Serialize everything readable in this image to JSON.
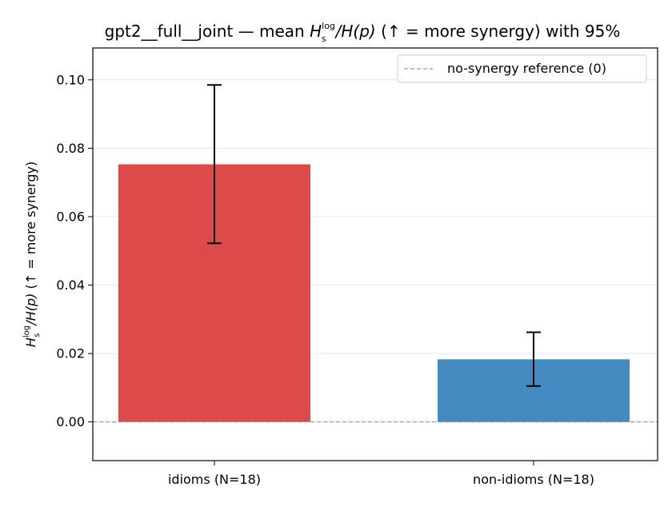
{
  "chart_data": {
    "type": "bar",
    "title": {
      "prefix": "gpt2__full__joint — mean ",
      "sym_main": "H",
      "sym_sup": "log",
      "sym_sub": "s",
      "sym_rest": "/H(p)",
      "suffix": "  (↑ = more synergy) with 95%"
    },
    "ylabel": {
      "sym_main": "H",
      "sym_sup": "log",
      "sym_sub": "s",
      "sym_rest": "/H(p)",
      "suffix": "  (↑ = more synergy)"
    },
    "categories": [
      "idioms (N=18)",
      "non-idioms (N=18)"
    ],
    "series": [
      {
        "values": [
          0.0753,
          0.0183
        ],
        "ci_low": [
          0.0522,
          0.0105
        ],
        "ci_high": [
          0.0985,
          0.0262
        ],
        "colors": [
          "#dc4a4a",
          "#438ac0"
        ]
      }
    ],
    "yticks": [
      "0.00",
      "0.02",
      "0.04",
      "0.06",
      "0.08",
      "0.10"
    ],
    "ytick_values": [
      0,
      0.02,
      0.04,
      0.06,
      0.08,
      0.1
    ],
    "ylim": [
      -0.0113,
      0.1093
    ],
    "grid": "y",
    "reference_line": {
      "value": 0,
      "label": "no-synergy reference (0)",
      "color": "#999999"
    },
    "legend_position": "top-right"
  }
}
